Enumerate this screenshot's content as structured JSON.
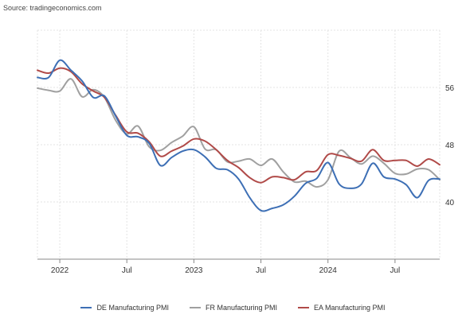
{
  "source_text": "Source: tradingeconomics.com",
  "chart_data": {
    "type": "line",
    "title": "",
    "xlabel": "",
    "ylabel": "",
    "x_ticks": [
      "2022",
      "Jul",
      "2023",
      "Jul",
      "2024",
      "Jul"
    ],
    "y_ticks": [
      56,
      48,
      40
    ],
    "ylim": [
      32,
      64
    ],
    "x": [
      "2021-11",
      "2021-12",
      "2022-01",
      "2022-02",
      "2022-03",
      "2022-04",
      "2022-05",
      "2022-06",
      "2022-07",
      "2022-08",
      "2022-09",
      "2022-10",
      "2022-11",
      "2022-12",
      "2023-01",
      "2023-02",
      "2023-03",
      "2023-04",
      "2023-05",
      "2023-06",
      "2023-07",
      "2023-08",
      "2023-09",
      "2023-10",
      "2023-11",
      "2023-12",
      "2024-01",
      "2024-02",
      "2024-03",
      "2024-04",
      "2024-05",
      "2024-06",
      "2024-07",
      "2024-08",
      "2024-09",
      "2024-10",
      "2024-11"
    ],
    "grid": true,
    "legend_position": "bottom",
    "series": [
      {
        "name": "DE Manufacturing PMI",
        "color": "#3d6fb5",
        "values": [
          57.4,
          57.4,
          59.8,
          58.4,
          56.9,
          54.6,
          54.8,
          52.0,
          49.3,
          49.1,
          48.2,
          45.1,
          46.2,
          47.1,
          47.3,
          46.3,
          44.7,
          44.5,
          43.2,
          40.6,
          38.8,
          39.1,
          39.6,
          40.8,
          42.6,
          43.3,
          45.5,
          42.5,
          41.9,
          42.5,
          45.4,
          43.5,
          43.2,
          42.4,
          40.6,
          43.0,
          43.2
        ]
      },
      {
        "name": "FR Manufacturing PMI",
        "color": "#a0a0a0",
        "values": [
          55.9,
          55.6,
          55.5,
          57.2,
          54.7,
          55.7,
          54.6,
          51.4,
          49.5,
          50.6,
          47.7,
          47.2,
          48.3,
          49.2,
          50.5,
          47.4,
          47.3,
          45.6,
          45.7,
          46.0,
          45.1,
          46.0,
          44.2,
          42.8,
          42.9,
          42.1,
          43.1,
          47.1,
          46.2,
          45.3,
          46.4,
          45.4,
          44.0,
          43.9,
          44.6,
          44.5,
          43.1
        ]
      },
      {
        "name": "EA Manufacturing PMI",
        "color": "#b04a48",
        "values": [
          58.4,
          58.0,
          58.7,
          58.2,
          56.5,
          55.5,
          54.6,
          52.1,
          49.8,
          49.6,
          48.4,
          46.4,
          47.1,
          47.8,
          48.8,
          48.5,
          47.3,
          45.8,
          44.8,
          43.4,
          42.7,
          43.5,
          43.4,
          43.1,
          44.2,
          44.4,
          46.6,
          46.5,
          46.1,
          45.7,
          47.3,
          45.8,
          45.8,
          45.8,
          45.0,
          46.0,
          45.2
        ]
      }
    ]
  }
}
